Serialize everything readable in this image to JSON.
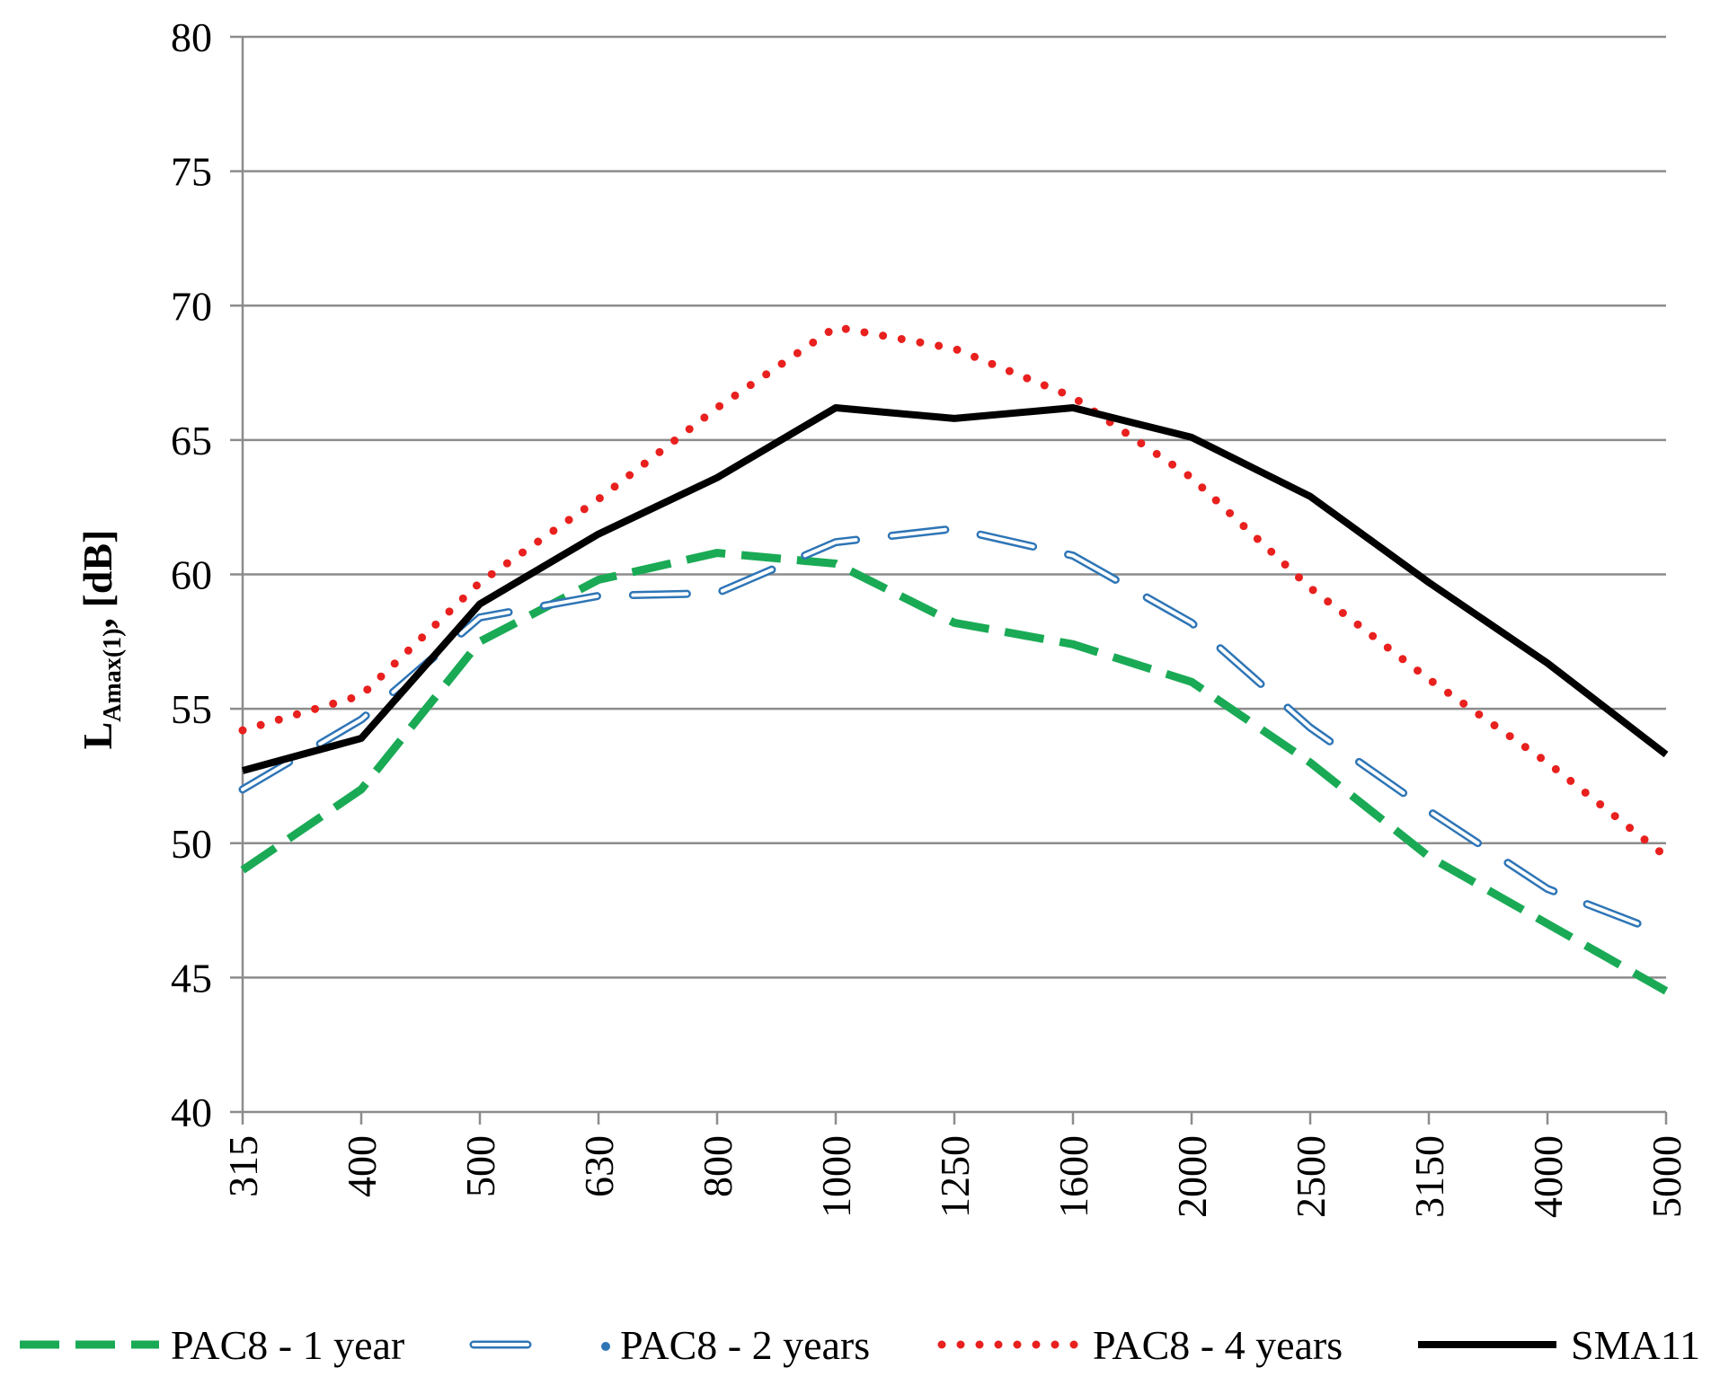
{
  "chart_data": {
    "type": "line",
    "title": "",
    "xlabel": "",
    "ylabel": {
      "main": "L",
      "subscript": "Amax(1)",
      "suffix": ",  [dB]"
    },
    "categories": [
      "315",
      "400",
      "500",
      "630",
      "800",
      "1000",
      "1250",
      "1600",
      "2000",
      "2500",
      "3150",
      "4000",
      "5000"
    ],
    "ylim": [
      40,
      80
    ],
    "yticks": [
      40,
      45,
      50,
      55,
      60,
      65,
      70,
      75,
      80
    ],
    "grid": true,
    "legend_position": "bottom",
    "series": [
      {
        "name": "PAC8 - 1 year",
        "color": "#1aaa55",
        "style": "dashed",
        "values": [
          49.0,
          52.0,
          57.5,
          59.8,
          60.8,
          60.4,
          58.2,
          57.4,
          56.0,
          53.0,
          49.5,
          47.0,
          44.5
        ]
      },
      {
        "name": "PAC8 - 2 years",
        "color": "#2e75b6",
        "style": "double-dashed",
        "values": [
          52.0,
          54.6,
          58.4,
          59.2,
          59.3,
          61.2,
          61.7,
          60.7,
          58.2,
          54.3,
          51.2,
          48.3,
          46.6
        ]
      },
      {
        "name": "PAC8 - 4 years",
        "color": "#e8201e",
        "style": "dotted",
        "values": [
          54.2,
          55.5,
          59.7,
          62.8,
          66.2,
          69.2,
          68.4,
          66.6,
          63.6,
          59.5,
          56.1,
          53.0,
          49.5
        ]
      },
      {
        "name": "SMA11",
        "color": "#000000",
        "style": "solid",
        "values": [
          52.7,
          53.9,
          58.9,
          61.5,
          63.6,
          66.2,
          65.8,
          66.2,
          65.1,
          62.9,
          59.7,
          56.7,
          53.3
        ]
      }
    ]
  }
}
